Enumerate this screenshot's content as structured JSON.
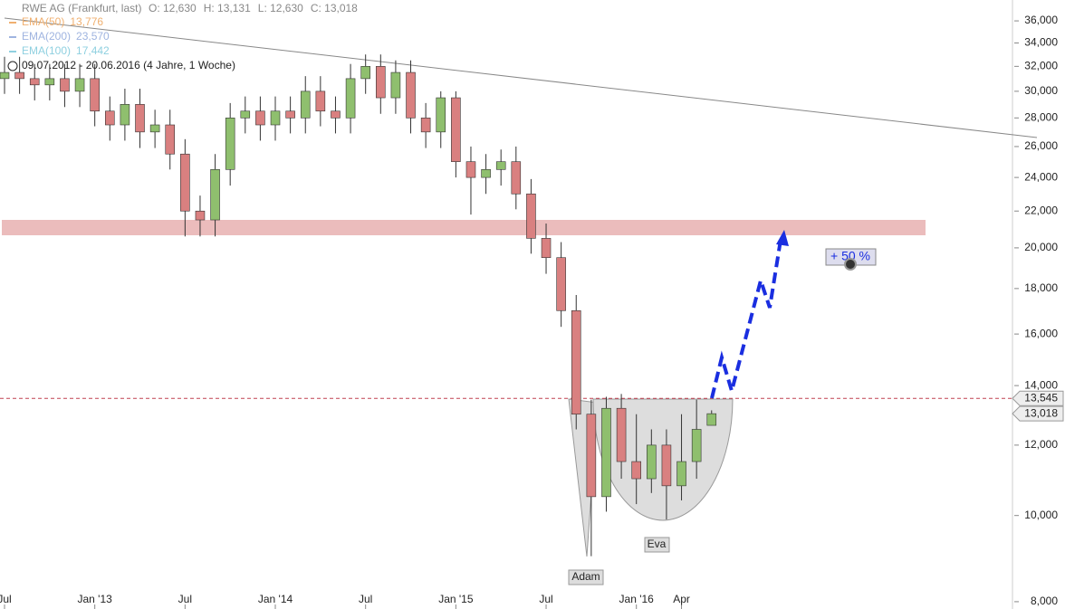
{
  "chart_data": {
    "type": "candlestick",
    "title": "RWE AG (Frankfurt, last)",
    "ohlc_texts": [
      "O: 12,630",
      "H: 13,131",
      "L: 12,630",
      "C: 13,018"
    ],
    "indicators": [
      {
        "name": "EMA(50)",
        "value": "13,776",
        "color": "#f0b070"
      },
      {
        "name": "EMA(200)",
        "value": "23,570",
        "color": "#9fb4e0"
      },
      {
        "name": "EMA(100)",
        "value": "17,442",
        "color": "#8fd0e0"
      }
    ],
    "range_text": "09.07.2012 - 20.06.2016 (4 Jahre, 1 Woche)",
    "x": [
      "2012-07",
      "2012-08",
      "2012-09",
      "2012-10",
      "2012-11",
      "2012-12",
      "2013-01",
      "2013-02",
      "2013-03",
      "2013-04",
      "2013-05",
      "2013-06",
      "2013-07",
      "2013-08",
      "2013-09",
      "2013-10",
      "2013-11",
      "2013-12",
      "2014-01",
      "2014-02",
      "2014-03",
      "2014-04",
      "2014-05",
      "2014-06",
      "2014-07",
      "2014-08",
      "2014-09",
      "2014-10",
      "2014-11",
      "2014-12",
      "2015-01",
      "2015-02",
      "2015-03",
      "2015-04",
      "2015-05",
      "2015-06",
      "2015-07",
      "2015-08",
      "2015-09",
      "2015-10",
      "2015-11",
      "2015-12",
      "2016-01",
      "2016-02",
      "2016-03",
      "2016-04",
      "2016-05",
      "2016-06"
    ],
    "open": [
      31000,
      31500,
      31000,
      30500,
      31000,
      30000,
      31000,
      28500,
      27500,
      29000,
      27000,
      27500,
      25500,
      22000,
      21500,
      24500,
      28000,
      28500,
      27500,
      28500,
      28000,
      30000,
      28500,
      28000,
      31000,
      32000,
      29500,
      31500,
      28000,
      27000,
      29500,
      25000,
      24000,
      24500,
      25000,
      23000,
      20500,
      19500,
      17000,
      13000,
      10500,
      13200,
      11500,
      11000,
      12000,
      10800,
      11500,
      12630
    ],
    "high": [
      32800,
      32800,
      32200,
      32200,
      32200,
      32200,
      32200,
      29600,
      30200,
      30200,
      28600,
      28600,
      26500,
      22900,
      25500,
      29100,
      29600,
      29600,
      29600,
      29600,
      31200,
      31200,
      29600,
      32200,
      33000,
      33000,
      32500,
      32500,
      29100,
      30000,
      30000,
      26000,
      25500,
      25800,
      26000,
      23900,
      21300,
      20300,
      17700,
      13500,
      13600,
      13700,
      13000,
      12500,
      12500,
      13000,
      13500,
      13131
    ],
    "low": [
      29800,
      29800,
      29300,
      29300,
      28800,
      28800,
      27400,
      26400,
      26400,
      25900,
      25900,
      24500,
      20600,
      20600,
      20600,
      23500,
      26900,
      26400,
      26400,
      26900,
      26900,
      27400,
      26900,
      26900,
      29800,
      28300,
      28300,
      26900,
      25900,
      25900,
      24000,
      21800,
      23000,
      23500,
      22100,
      19700,
      18700,
      16300,
      12500,
      9000,
      10100,
      11000,
      10300,
      10600,
      9900,
      10400,
      11000,
      12630
    ],
    "close": [
      31500,
      31000,
      30500,
      31000,
      30000,
      31000,
      28500,
      27500,
      29000,
      27000,
      27500,
      25500,
      22000,
      21500,
      24500,
      28000,
      28500,
      27500,
      28500,
      28000,
      30000,
      28500,
      28000,
      31000,
      32000,
      29500,
      31500,
      28000,
      27000,
      29500,
      25000,
      24000,
      24500,
      25000,
      23000,
      20500,
      19500,
      17000,
      13000,
      10500,
      13200,
      11500,
      11000,
      12000,
      10800,
      11500,
      12500,
      13018
    ],
    "up_color": "#8fbf6e",
    "down_color": "#d98080",
    "xlim": [
      "2012-07",
      "2018-02"
    ],
    "xticks": [
      {
        "value": "2012-07",
        "label": "Jul"
      },
      {
        "value": "2013-01",
        "label": "Jan '13"
      },
      {
        "value": "2013-07",
        "label": "Jul"
      },
      {
        "value": "2014-01",
        "label": "Jan '14"
      },
      {
        "value": "2014-07",
        "label": "Jul"
      },
      {
        "value": "2015-01",
        "label": "Jan '15"
      },
      {
        "value": "2015-07",
        "label": "Jul"
      },
      {
        "value": "2016-01",
        "label": "Jan '16"
      },
      {
        "value": "2016-04",
        "label": "Apr"
      }
    ],
    "ylim": [
      7850,
      38000
    ],
    "log_scale": true,
    "yticks": [
      {
        "value": 8000,
        "label": "8,000"
      },
      {
        "value": 10000,
        "label": "10,000"
      },
      {
        "value": 12000,
        "label": "12,000"
      },
      {
        "value": 14000,
        "label": "14,000"
      },
      {
        "value": 16000,
        "label": "16,000"
      },
      {
        "value": 18000,
        "label": "18,000"
      },
      {
        "value": 20000,
        "label": "20,000"
      },
      {
        "value": 22000,
        "label": "22,000"
      },
      {
        "value": 24000,
        "label": "24,000"
      },
      {
        "value": 26000,
        "label": "26,000"
      },
      {
        "value": 28000,
        "label": "28,000"
      },
      {
        "value": 30000,
        "label": "30,000"
      },
      {
        "value": 32000,
        "label": "32,000"
      },
      {
        "value": 34000,
        "label": "34,000"
      },
      {
        "value": 36000,
        "label": "36,000"
      }
    ],
    "levels": [
      {
        "value": 13545,
        "label": "13,545",
        "color": "#c04050"
      },
      {
        "value": 13018,
        "label": "13,018",
        "color": "#888888"
      }
    ],
    "annotations": {
      "target": "+ 50 %",
      "adam": "Adam",
      "eva": "Eva"
    }
  }
}
